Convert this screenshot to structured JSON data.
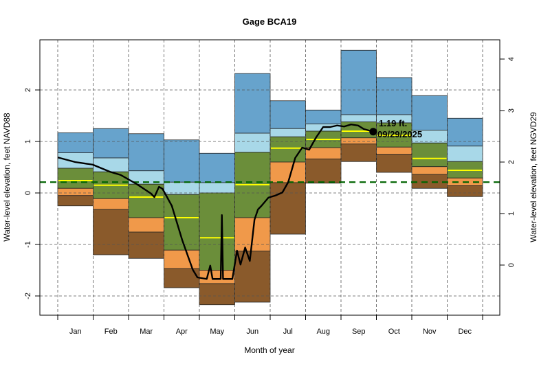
{
  "chart_data": {
    "type": "area",
    "title": "Gage BCA19",
    "xlabel": "Month of year",
    "ylabel": "Water-level elevation, feet NAVD88",
    "ylabel_right": "Water-level elevation, feet NGVD29",
    "categories": [
      "Jan",
      "Feb",
      "Mar",
      "Apr",
      "May",
      "Jun",
      "Jul",
      "Aug",
      "Sep",
      "Oct",
      "Nov",
      "Dec"
    ],
    "ylim": [
      -2.4,
      2.95
    ],
    "yticks": [
      -2,
      -1,
      0,
      1,
      2
    ],
    "yticks_right": [
      0,
      1,
      2,
      3,
      4
    ],
    "right_axis_offset": 1.4,
    "grid": true,
    "band_colors": {
      "max": "#67a3cc",
      "p90": "#a8d8e8",
      "p75": "#6b8e3a",
      "p25": "#f0994a",
      "p10": "#8a5a2b",
      "median": "#ffff00"
    },
    "monthly_stats": {
      "max": [
        1.17,
        1.25,
        1.15,
        1.03,
        0.77,
        2.32,
        1.79,
        1.61,
        2.77,
        2.24,
        1.89,
        1.45
      ],
      "p90": [
        0.78,
        0.68,
        0.43,
        0.21,
        0.2,
        1.16,
        1.25,
        1.34,
        1.52,
        1.52,
        1.22,
        0.91
      ],
      "p75": [
        0.48,
        0.41,
        0.17,
        -0.03,
        0.0,
        0.79,
        1.09,
        1.2,
        1.38,
        1.36,
        0.97,
        0.61
      ],
      "median": [
        0.24,
        0.15,
        -0.08,
        -0.48,
        -0.87,
        0.16,
        0.87,
        1.04,
        1.2,
        1.12,
        0.67,
        0.44
      ],
      "p25": [
        0.09,
        -0.11,
        -0.48,
        -1.11,
        -1.5,
        -0.48,
        0.6,
        0.88,
        1.07,
        0.89,
        0.51,
        0.29
      ],
      "p10": [
        -0.05,
        -0.32,
        -0.76,
        -1.47,
        -1.76,
        -1.13,
        0.2,
        0.66,
        0.95,
        0.75,
        0.36,
        0.14
      ],
      "min": [
        -0.25,
        -1.2,
        -1.27,
        -1.84,
        -2.17,
        -2.12,
        -0.8,
        0.19,
        0.61,
        0.4,
        0.09,
        -0.07
      ]
    },
    "reference_line": {
      "value": 0.21,
      "color": "#006400"
    },
    "observed": {
      "color": "#000000",
      "points": [
        [
          "01/01",
          0.69
        ],
        [
          "01/16",
          0.6
        ],
        [
          "01/31",
          0.55
        ],
        [
          "02/15",
          0.41
        ],
        [
          "02/24",
          0.35
        ],
        [
          "03/10",
          0.17
        ],
        [
          "03/22",
          -0.01
        ],
        [
          "03/25",
          -0.08
        ],
        [
          "03/29",
          0.12
        ],
        [
          "04/01",
          0.08
        ],
        [
          "04/09",
          -0.25
        ],
        [
          "04/18",
          -0.92
        ],
        [
          "04/27",
          -1.49
        ],
        [
          "05/01",
          -1.64
        ],
        [
          "05/09",
          -1.67
        ],
        [
          "05/12",
          -1.41
        ],
        [
          "05/14",
          -1.67
        ],
        [
          "05/21",
          -1.67
        ],
        [
          "05/22",
          -0.43
        ],
        [
          "05/23",
          -1.67
        ],
        [
          "05/31",
          -1.67
        ],
        [
          "06/04",
          -1.12
        ],
        [
          "06/07",
          -1.39
        ],
        [
          "06/11",
          -1.06
        ],
        [
          "06/15",
          -1.32
        ],
        [
          "06/19",
          -0.52
        ],
        [
          "06/22",
          -0.32
        ],
        [
          "06/25",
          -0.25
        ],
        [
          "07/01",
          -0.09
        ],
        [
          "07/07",
          -0.05
        ],
        [
          "07/13",
          0.01
        ],
        [
          "07/18",
          0.21
        ],
        [
          "07/24",
          0.68
        ],
        [
          "07/30",
          0.88
        ],
        [
          "08/05",
          0.84
        ],
        [
          "08/11",
          1.08
        ],
        [
          "08/17",
          1.28
        ],
        [
          "08/23",
          1.28
        ],
        [
          "08/29",
          1.31
        ],
        [
          "09/04",
          1.29
        ],
        [
          "09/10",
          1.33
        ],
        [
          "09/16",
          1.31
        ],
        [
          "09/21",
          1.24
        ],
        [
          "09/29",
          1.19
        ]
      ]
    },
    "annotation": {
      "value_label": "1.19 ft.",
      "date_label": "09/29/2025"
    }
  }
}
